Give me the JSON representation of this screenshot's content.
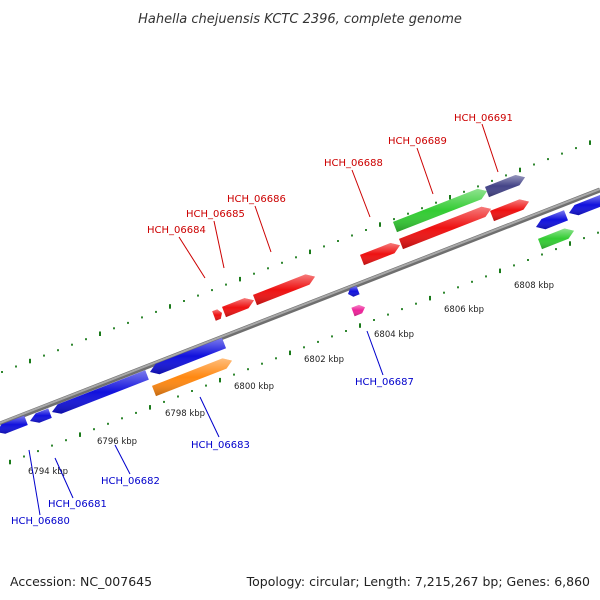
{
  "title": "Hahella chejuensis KCTC 2396, complete genome",
  "footer": {
    "accession": "Accession: NC_007645",
    "topology": "Topology: circular; Length: 7,215,267 bp; Genes: 6,860"
  },
  "colors": {
    "backbone": "#8a8a8a",
    "tick_dots": "#1a7a1a",
    "label_forward": "#cc0000",
    "label_reverse": "#0000cc",
    "gene_red": "#ee1111",
    "gene_blue": "#1111dd",
    "gene_green": "#33cc33",
    "gene_orange": "#ff8811",
    "gene_purple": "#444488",
    "gene_pink": "#ee2299"
  },
  "kbp_labels": [
    "6794 kbp",
    "6796 kbp",
    "6798 kbp",
    "6800 kbp",
    "6802 kbp",
    "6804 kbp",
    "6806 kbp",
    "6808 kbp"
  ],
  "gene_labels_forward": [
    "HCH_06684",
    "HCH_06685",
    "HCH_06686",
    "HCH_06688",
    "HCH_06689",
    "HCH_06691"
  ],
  "gene_labels_reverse": [
    "HCH_06680",
    "HCH_06681",
    "HCH_06682",
    "HCH_06683",
    "HCH_06687"
  ]
}
